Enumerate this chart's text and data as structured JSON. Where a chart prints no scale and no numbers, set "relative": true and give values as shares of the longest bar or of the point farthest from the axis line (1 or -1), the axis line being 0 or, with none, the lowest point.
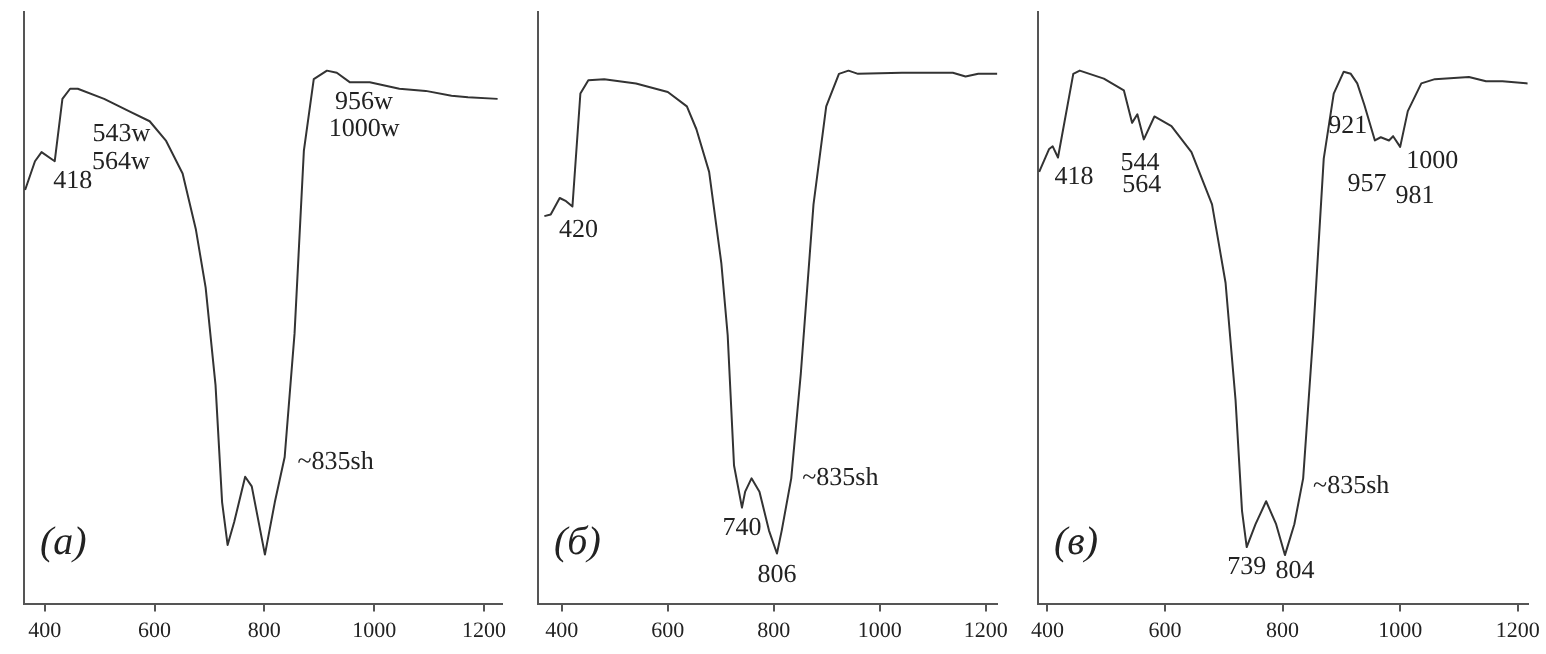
{
  "chart_data": [
    {
      "type": "line",
      "relative": true,
      "tick_labels": "x",
      "grid": false,
      "legend": false,
      "marker": "none",
      "xlim": [
        362,
        1233
      ],
      "xticks": [
        400,
        600,
        800,
        1000,
        1200
      ],
      "series": [
        {
          "color": "#333333",
          "x": [
            364,
            382,
            394,
            418,
            432,
            446,
            460,
            508,
            555,
            591,
            621,
            651,
            675,
            693,
            711,
            723,
            733,
            745,
            765,
            777,
            801,
            819,
            837,
            855,
            872,
            890,
            914,
            932,
            956,
            992,
            1046,
            1094,
            1141,
            1171,
            1225
          ],
          "values": [
            0.776,
            0.83,
            0.847,
            0.83,
            0.947,
            0.966,
            0.966,
            0.947,
            0.923,
            0.905,
            0.868,
            0.807,
            0.703,
            0.593,
            0.41,
            0.19,
            0.11,
            0.153,
            0.238,
            0.22,
            0.092,
            0.19,
            0.275,
            0.507,
            0.85,
            0.984,
            1.0,
            0.996,
            0.978,
            0.978,
            0.966,
            0.962,
            0.953,
            0.95,
            0.947
          ]
        }
      ],
      "annotations": [
        "(а)",
        {
          "text": "418",
          "x": 418,
          "y": 0.83
        },
        {
          "text": "543w",
          "x": 543,
          "y": 0.929
        },
        {
          "text": "564w",
          "x": 564,
          "y": 0.918
        },
        {
          "text": "956w",
          "x": 956,
          "y": 0.978
        },
        {
          "text": "1000w",
          "x": 1000,
          "y": 0.976
        },
        {
          "text": "~835sh",
          "x": 835,
          "y": 0.266
        }
      ]
    },
    {
      "type": "line",
      "relative": true,
      "tick_labels": "x",
      "grid": false,
      "legend": false,
      "marker": "none",
      "xlim": [
        355,
        1222
      ],
      "xticks": [
        400,
        600,
        800,
        1000,
        1200
      ],
      "series": [
        {
          "color": "#333333",
          "x": [
            367,
            379,
            396,
            408,
            420,
            435,
            450,
            480,
            540,
            600,
            636,
            654,
            678,
            701,
            713,
            725,
            740,
            746,
            758,
            773,
            791,
            806,
            815,
            833,
            851,
            875,
            899,
            923,
            941,
            959,
            1042,
            1138,
            1162,
            1186,
            1222
          ],
          "values": [
            0.727,
            0.73,
            0.761,
            0.755,
            0.745,
            0.957,
            0.982,
            0.984,
            0.976,
            0.96,
            0.933,
            0.89,
            0.81,
            0.639,
            0.504,
            0.259,
            0.18,
            0.21,
            0.235,
            0.21,
            0.137,
            0.094,
            0.137,
            0.235,
            0.431,
            0.749,
            0.933,
            0.994,
            1.0,
            0.994,
            0.996,
            0.996,
            0.989,
            0.994,
            0.994
          ]
        }
      ],
      "annotations": [
        "(б)",
        {
          "text": "420",
          "x": 420,
          "y": 0.745
        },
        {
          "text": "740",
          "x": 740,
          "y": 0.18
        },
        {
          "text": "806",
          "x": 806,
          "y": 0.094
        },
        {
          "text": "~835sh",
          "x": 835,
          "y": 0.257
        }
      ]
    },
    {
      "type": "line",
      "relative": true,
      "tick_labels": "x",
      "grid": false,
      "legend": false,
      "marker": "none",
      "xlim": [
        384,
        1217
      ],
      "xticks": [
        400,
        600,
        800,
        1000,
        1200
      ],
      "series": [
        {
          "color": "#333333",
          "x": [
            386,
            403,
            409,
            418,
            444,
            455,
            496,
            530,
            544,
            553,
            564,
            582,
            611,
            645,
            680,
            703,
            720,
            731,
            739,
            754,
            772,
            789,
            804,
            820,
            835,
            852,
            870,
            887,
            904,
            916,
            927,
            939,
            957,
            967,
            981,
            988,
            1000,
            1013,
            1036,
            1059,
            1117,
            1146,
            1174,
            1217
          ],
          "values": [
            0.81,
            0.853,
            0.858,
            0.837,
            0.994,
            1.0,
            0.985,
            0.963,
            0.902,
            0.918,
            0.871,
            0.914,
            0.896,
            0.847,
            0.749,
            0.602,
            0.382,
            0.174,
            0.106,
            0.149,
            0.192,
            0.149,
            0.091,
            0.149,
            0.235,
            0.504,
            0.835,
            0.957,
            0.998,
            0.994,
            0.976,
            0.936,
            0.869,
            0.875,
            0.869,
            0.877,
            0.857,
            0.924,
            0.976,
            0.984,
            0.988,
            0.98,
            0.98,
            0.976
          ]
        }
      ],
      "annotations": [
        "(в)",
        {
          "text": "418",
          "x": 418,
          "y": 0.837
        },
        {
          "text": "544",
          "x": 544,
          "y": 0.902
        },
        {
          "text": "564",
          "x": 564,
          "y": 0.871
        },
        {
          "text": "921",
          "x": 921,
          "y": 0.986
        },
        {
          "text": "957",
          "x": 957,
          "y": 0.869
        },
        {
          "text": "981",
          "x": 981,
          "y": 0.869
        },
        {
          "text": "1000",
          "x": 1000,
          "y": 0.857
        },
        {
          "text": "~835sh",
          "x": 835,
          "y": 0.235
        },
        {
          "text": "739",
          "x": 739,
          "y": 0.106
        },
        {
          "text": "804",
          "x": 804,
          "y": 0.091
        }
      ]
    }
  ]
}
